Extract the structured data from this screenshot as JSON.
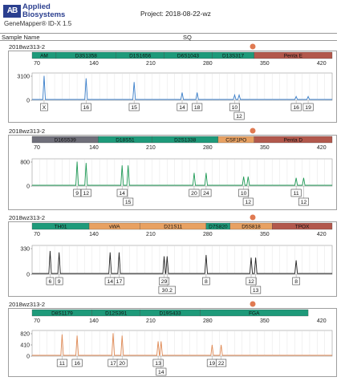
{
  "header": {
    "logo_mark": "AB",
    "brand_line1": "Applied",
    "brand_line2": "Biosystems",
    "product": "GeneMapper® ID-X 1.5",
    "project": "Project: 2018-08-22-wz"
  },
  "columns": {
    "sample_name": "Sample Name",
    "sq": "SQ"
  },
  "colors": {
    "green": "#1e9a7a",
    "darkgray": "#6f6f7a",
    "orange": "#e8a162",
    "brown": "#b2584c",
    "blue_trace": "#3a7ec9",
    "green_trace": "#1f9a56",
    "black_trace": "#222222",
    "orange_trace": "#e08a55"
  },
  "panels": [
    {
      "sample": "2018wz313-2",
      "trace": "blue_trace",
      "y_ticks": [
        "3100",
        "0"
      ],
      "x_ticks": [
        "70",
        "140",
        "210",
        "280",
        "350",
        "420"
      ],
      "loci": [
        {
          "name": "AM",
          "color": "green",
          "start": 0.0,
          "end": 0.08
        },
        {
          "name": "D3S1358",
          "color": "green",
          "start": 0.08,
          "end": 0.28
        },
        {
          "name": "D1S1656",
          "color": "green",
          "start": 0.28,
          "end": 0.44
        },
        {
          "name": "D6S1043",
          "color": "green",
          "start": 0.44,
          "end": 0.6
        },
        {
          "name": "D13S317",
          "color": "green",
          "start": 0.6,
          "end": 0.74
        },
        {
          "name": "Penta E",
          "color": "brown",
          "start": 0.74,
          "end": 1.0
        }
      ],
      "peaks": [
        {
          "pos": 0.04,
          "h": 0.95,
          "label": "X",
          "row": 0
        },
        {
          "pos": 0.18,
          "h": 0.85,
          "label": "16",
          "row": 0
        },
        {
          "pos": 0.34,
          "h": 0.7,
          "label": "15",
          "row": 0
        },
        {
          "pos": 0.5,
          "h": 0.28,
          "label": "14",
          "row": 0
        },
        {
          "pos": 0.55,
          "h": 0.28,
          "label": "18",
          "row": 0
        },
        {
          "pos": 0.675,
          "h": 0.18,
          "label": "10",
          "row": 0
        },
        {
          "pos": 0.69,
          "h": 0.18,
          "label": "12",
          "row": 1
        },
        {
          "pos": 0.88,
          "h": 0.12,
          "label": "16",
          "row": 0
        },
        {
          "pos": 0.92,
          "h": 0.12,
          "label": "19",
          "row": 0
        }
      ]
    },
    {
      "sample": "2018wz313-2",
      "trace": "green_trace",
      "y_ticks": [
        "800",
        "0"
      ],
      "x_ticks": [
        "70",
        "140",
        "210",
        "280",
        "350",
        "420"
      ],
      "loci": [
        {
          "name": "D16S539",
          "color": "darkgray",
          "start": 0.0,
          "end": 0.22
        },
        {
          "name": "D18S51",
          "color": "green",
          "start": 0.22,
          "end": 0.4
        },
        {
          "name": "D2S1338",
          "color": "green",
          "start": 0.4,
          "end": 0.62
        },
        {
          "name": "CSF1PO",
          "color": "orange",
          "start": 0.62,
          "end": 0.74
        },
        {
          "name": "Penta D",
          "color": "brown",
          "start": 0.74,
          "end": 1.0
        }
      ],
      "peaks": [
        {
          "pos": 0.15,
          "h": 0.95,
          "label": "9",
          "row": 0
        },
        {
          "pos": 0.18,
          "h": 0.9,
          "label": "12",
          "row": 0
        },
        {
          "pos": 0.3,
          "h": 0.8,
          "label": "14",
          "row": 0
        },
        {
          "pos": 0.32,
          "h": 0.8,
          "label": "15",
          "row": 1
        },
        {
          "pos": 0.54,
          "h": 0.5,
          "label": "20",
          "row": 0
        },
        {
          "pos": 0.58,
          "h": 0.5,
          "label": "24",
          "row": 0
        },
        {
          "pos": 0.705,
          "h": 0.35,
          "label": "10",
          "row": 0
        },
        {
          "pos": 0.72,
          "h": 0.35,
          "label": "12",
          "row": 1
        },
        {
          "pos": 0.88,
          "h": 0.3,
          "label": "11",
          "row": 0
        },
        {
          "pos": 0.905,
          "h": 0.3,
          "label": "12",
          "row": 1
        }
      ]
    },
    {
      "sample": "2018wz313-2",
      "trace": "black_trace",
      "y_ticks": [
        "330",
        "0"
      ],
      "x_ticks": [
        "70",
        "140",
        "210",
        "280",
        "350",
        "420"
      ],
      "loci": [
        {
          "name": "TH01",
          "color": "green",
          "start": 0.0,
          "end": 0.19
        },
        {
          "name": "vWA",
          "color": "orange",
          "start": 0.19,
          "end": 0.36
        },
        {
          "name": "D21S11",
          "color": "orange",
          "start": 0.36,
          "end": 0.58
        },
        {
          "name": "D7S820",
          "color": "green",
          "start": 0.58,
          "end": 0.66
        },
        {
          "name": "D5S818",
          "color": "orange",
          "start": 0.66,
          "end": 0.8
        },
        {
          "name": "TPOX",
          "color": "brown",
          "start": 0.8,
          "end": 1.0
        }
      ],
      "peaks": [
        {
          "pos": 0.06,
          "h": 0.85,
          "label": "6",
          "row": 0
        },
        {
          "pos": 0.09,
          "h": 0.8,
          "label": "9",
          "row": 0
        },
        {
          "pos": 0.26,
          "h": 0.8,
          "label": "14",
          "row": 0
        },
        {
          "pos": 0.29,
          "h": 0.8,
          "label": "17",
          "row": 0
        },
        {
          "pos": 0.44,
          "h": 0.65,
          "label": "29",
          "row": 0
        },
        {
          "pos": 0.45,
          "h": 0.65,
          "label": "30.2",
          "row": 1
        },
        {
          "pos": 0.58,
          "h": 0.7,
          "label": "8",
          "row": 0
        },
        {
          "pos": 0.73,
          "h": 0.6,
          "label": "12",
          "row": 0
        },
        {
          "pos": 0.745,
          "h": 0.6,
          "label": "13",
          "row": 1
        },
        {
          "pos": 0.88,
          "h": 0.5,
          "label": "8",
          "row": 0
        }
      ]
    },
    {
      "sample": "2018wz313-2",
      "trace": "orange_trace",
      "y_ticks": [
        "820",
        "410",
        "0"
      ],
      "x_ticks": [
        "70",
        "140",
        "210",
        "280",
        "350",
        "420"
      ],
      "loci": [
        {
          "name": "D8S1179",
          "color": "green",
          "start": 0.0,
          "end": 0.2
        },
        {
          "name": "D12S391",
          "color": "green",
          "start": 0.2,
          "end": 0.36
        },
        {
          "name": "D19S433",
          "color": "green",
          "start": 0.36,
          "end": 0.56
        },
        {
          "name": "FGA",
          "color": "green",
          "start": 0.56,
          "end": 0.92
        }
      ],
      "peaks": [
        {
          "pos": 0.1,
          "h": 0.9,
          "label": "11",
          "row": 0
        },
        {
          "pos": 0.15,
          "h": 0.85,
          "label": "16",
          "row": 0
        },
        {
          "pos": 0.27,
          "h": 0.95,
          "label": "17",
          "row": 0
        },
        {
          "pos": 0.3,
          "h": 0.85,
          "label": "20",
          "row": 0
        },
        {
          "pos": 0.42,
          "h": 0.6,
          "label": "13",
          "row": 0
        },
        {
          "pos": 0.43,
          "h": 0.6,
          "label": "14",
          "row": 1
        },
        {
          "pos": 0.6,
          "h": 0.45,
          "label": "19",
          "row": 0
        },
        {
          "pos": 0.63,
          "h": 0.45,
          "label": "22",
          "row": 0
        }
      ]
    }
  ]
}
